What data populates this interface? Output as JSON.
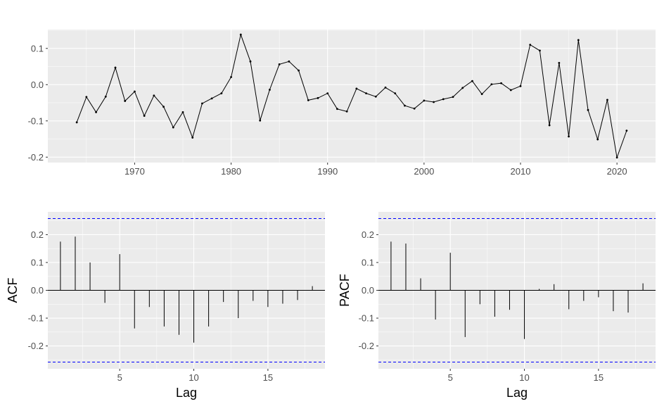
{
  "colors": {
    "panel": "#ebebeb",
    "grid": "#ffffff",
    "line": "#000000",
    "bound": "#0000ff",
    "tick_text": "#4d4d4d"
  },
  "chart_data": [
    {
      "type": "line",
      "title": "",
      "xlabel": "",
      "ylabel": "",
      "xlim": [
        1961,
        2024
      ],
      "ylim": [
        -0.215,
        0.152
      ],
      "x_ticks": [
        1970,
        1980,
        1990,
        2000,
        2010,
        2020
      ],
      "y_ticks": [
        0.1,
        0.0,
        -0.1,
        -0.2
      ],
      "y_tick_labels": [
        "0.1",
        "0.0",
        "-0.1",
        "-0.2"
      ],
      "grid": true,
      "series": [
        {
          "x": [
            1964,
            1965,
            1966,
            1967,
            1968,
            1969,
            1970,
            1971,
            1972,
            1973,
            1974,
            1975,
            1976,
            1977,
            1978,
            1979,
            1980,
            1981,
            1982,
            1983,
            1984,
            1985,
            1986,
            1987,
            1988,
            1989,
            1990,
            1991,
            1992,
            1993,
            1994,
            1995,
            1996,
            1997,
            1998,
            1999,
            2000,
            2001,
            2002,
            2003,
            2004,
            2005,
            2006,
            2007,
            2008,
            2009,
            2010,
            2011,
            2012,
            2013,
            2014,
            2015,
            2016,
            2017,
            2018,
            2019,
            2020,
            2021
          ],
          "values": [
            -0.104,
            -0.034,
            -0.076,
            -0.033,
            0.047,
            -0.045,
            -0.019,
            -0.086,
            -0.03,
            -0.061,
            -0.118,
            -0.076,
            -0.146,
            -0.052,
            -0.038,
            -0.024,
            0.021,
            0.138,
            0.064,
            -0.099,
            -0.014,
            0.056,
            0.064,
            0.039,
            -0.043,
            -0.037,
            -0.024,
            -0.067,
            -0.074,
            -0.011,
            -0.024,
            -0.033,
            -0.008,
            -0.024,
            -0.058,
            -0.066,
            -0.044,
            -0.048,
            -0.04,
            -0.034,
            -0.009,
            0.01,
            -0.026,
            0.001,
            0.004,
            -0.015,
            -0.004,
            0.11,
            0.094,
            -0.112,
            0.06,
            -0.143,
            0.123,
            -0.07,
            -0.151,
            -0.042,
            -0.201,
            -0.127
          ]
        }
      ]
    },
    {
      "type": "bar",
      "title": "",
      "xlabel": "Lag",
      "ylabel": "ACF",
      "xlim": [
        0.15,
        18.85
      ],
      "ylim": [
        -0.282,
        0.282
      ],
      "x_ticks": [
        5,
        10,
        15
      ],
      "y_ticks": [
        0.2,
        0.1,
        0.0,
        -0.1,
        -0.2
      ],
      "y_tick_labels": [
        "0.2",
        "0.1",
        "0.0",
        "-0.1",
        "-0.2"
      ],
      "bounds": [
        0.258,
        -0.258
      ],
      "lags": [
        1,
        2,
        3,
        4,
        5,
        6,
        7,
        8,
        9,
        10,
        11,
        12,
        13,
        14,
        15,
        16,
        17,
        18
      ],
      "values": [
        0.175,
        0.193,
        0.1,
        -0.045,
        0.13,
        -0.137,
        -0.06,
        -0.13,
        -0.16,
        -0.188,
        -0.13,
        -0.042,
        -0.1,
        -0.038,
        -0.06,
        -0.048,
        -0.035,
        0.015
      ]
    },
    {
      "type": "bar",
      "title": "",
      "xlabel": "Lag",
      "ylabel": "PACF",
      "xlim": [
        0.15,
        18.85
      ],
      "ylim": [
        -0.282,
        0.282
      ],
      "x_ticks": [
        5,
        10,
        15
      ],
      "y_ticks": [
        0.2,
        0.1,
        0.0,
        -0.1,
        -0.2
      ],
      "y_tick_labels": [
        "0.2",
        "0.1",
        "0.0",
        "-0.1",
        "-0.2"
      ],
      "bounds": [
        0.258,
        -0.258
      ],
      "lags": [
        1,
        2,
        3,
        4,
        5,
        6,
        7,
        8,
        9,
        10,
        11,
        12,
        13,
        14,
        15,
        16,
        17,
        18
      ],
      "values": [
        0.175,
        0.168,
        0.043,
        -0.105,
        0.135,
        -0.168,
        -0.05,
        -0.095,
        -0.07,
        -0.175,
        0.005,
        0.022,
        -0.068,
        -0.038,
        -0.025,
        -0.075,
        -0.08,
        0.025
      ]
    }
  ]
}
